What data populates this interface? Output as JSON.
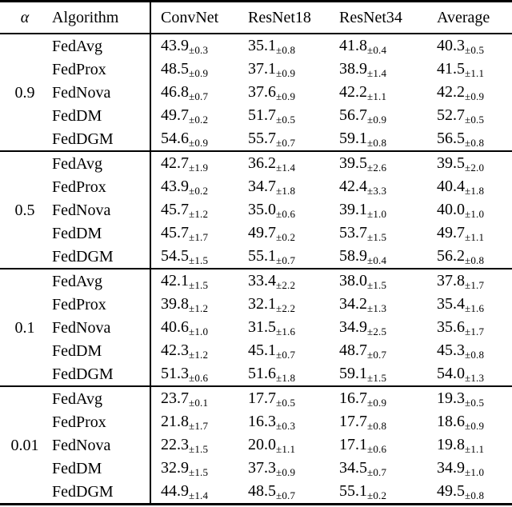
{
  "table": {
    "header": {
      "alpha": "α",
      "algorithm": "Algorithm",
      "columns": [
        "ConvNet",
        "ResNet18",
        "ResNet34",
        "Average"
      ]
    },
    "groups": [
      {
        "alpha": "0.9",
        "rows": [
          {
            "algorithm": "FedAvg",
            "cells": [
              {
                "mean": "43.9",
                "std": "±0.3"
              },
              {
                "mean": "35.1",
                "std": "±0.8"
              },
              {
                "mean": "41.8",
                "std": "±0.4"
              },
              {
                "mean": "40.3",
                "std": "±0.5"
              }
            ]
          },
          {
            "algorithm": "FedProx",
            "cells": [
              {
                "mean": "48.5",
                "std": "±0.9"
              },
              {
                "mean": "37.1",
                "std": "±0.9"
              },
              {
                "mean": "38.9",
                "std": "±1.4"
              },
              {
                "mean": "41.5",
                "std": "±1.1"
              }
            ]
          },
          {
            "algorithm": "FedNova",
            "cells": [
              {
                "mean": "46.8",
                "std": "±0.7"
              },
              {
                "mean": "37.6",
                "std": "±0.9"
              },
              {
                "mean": "42.2",
                "std": "±1.1"
              },
              {
                "mean": "42.2",
                "std": "±0.9"
              }
            ]
          },
          {
            "algorithm": "FedDM",
            "cells": [
              {
                "mean": "49.7",
                "std": "±0.2"
              },
              {
                "mean": "51.7",
                "std": "±0.5"
              },
              {
                "mean": "56.7",
                "std": "±0.9"
              },
              {
                "mean": "52.7",
                "std": "±0.5"
              }
            ]
          },
          {
            "algorithm": "FedDGM",
            "cells": [
              {
                "mean": "54.6",
                "std": "±0.9"
              },
              {
                "mean": "55.7",
                "std": "±0.7"
              },
              {
                "mean": "59.1",
                "std": "±0.8"
              },
              {
                "mean": "56.5",
                "std": "±0.8"
              }
            ]
          }
        ]
      },
      {
        "alpha": "0.5",
        "rows": [
          {
            "algorithm": "FedAvg",
            "cells": [
              {
                "mean": "42.7",
                "std": "±1.9"
              },
              {
                "mean": "36.2",
                "std": "±1.4"
              },
              {
                "mean": "39.5",
                "std": "±2.6"
              },
              {
                "mean": "39.5",
                "std": "±2.0"
              }
            ]
          },
          {
            "algorithm": "FedProx",
            "cells": [
              {
                "mean": "43.9",
                "std": "±0.2"
              },
              {
                "mean": "34.7",
                "std": "±1.8"
              },
              {
                "mean": "42.4",
                "std": "±3.3"
              },
              {
                "mean": "40.4",
                "std": "±1.8"
              }
            ]
          },
          {
            "algorithm": "FedNova",
            "cells": [
              {
                "mean": "45.7",
                "std": "±1.2"
              },
              {
                "mean": "35.0",
                "std": "±0.6"
              },
              {
                "mean": "39.1",
                "std": "±1.0"
              },
              {
                "mean": "40.0",
                "std": "±1.0"
              }
            ]
          },
          {
            "algorithm": "FedDM",
            "cells": [
              {
                "mean": "45.7",
                "std": "±1.7"
              },
              {
                "mean": "49.7",
                "std": "±0.2"
              },
              {
                "mean": "53.7",
                "std": "±1.5"
              },
              {
                "mean": "49.7",
                "std": "±1.1"
              }
            ]
          },
          {
            "algorithm": "FedDGM",
            "cells": [
              {
                "mean": "54.5",
                "std": "±1.5"
              },
              {
                "mean": "55.1",
                "std": "±0.7"
              },
              {
                "mean": "58.9",
                "std": "±0.4"
              },
              {
                "mean": "56.2",
                "std": "±0.8"
              }
            ]
          }
        ]
      },
      {
        "alpha": "0.1",
        "rows": [
          {
            "algorithm": "FedAvg",
            "cells": [
              {
                "mean": "42.1",
                "std": "±1.5"
              },
              {
                "mean": "33.4",
                "std": "±2.2"
              },
              {
                "mean": "38.0",
                "std": "±1.5"
              },
              {
                "mean": "37.8",
                "std": "±1.7"
              }
            ]
          },
          {
            "algorithm": "FedProx",
            "cells": [
              {
                "mean": "39.8",
                "std": "±1.2"
              },
              {
                "mean": "32.1",
                "std": "±2.2"
              },
              {
                "mean": "34.2",
                "std": "±1.3"
              },
              {
                "mean": "35.4",
                "std": "±1.6"
              }
            ]
          },
          {
            "algorithm": "FedNova",
            "cells": [
              {
                "mean": "40.6",
                "std": "±1.0"
              },
              {
                "mean": "31.5",
                "std": "±1.6"
              },
              {
                "mean": "34.9",
                "std": "±2.5"
              },
              {
                "mean": "35.6",
                "std": "±1.7"
              }
            ]
          },
          {
            "algorithm": "FedDM",
            "cells": [
              {
                "mean": "42.3",
                "std": "±1.2"
              },
              {
                "mean": "45.1",
                "std": "±0.7"
              },
              {
                "mean": "48.7",
                "std": "±0.7"
              },
              {
                "mean": "45.3",
                "std": "±0.8"
              }
            ]
          },
          {
            "algorithm": "FedDGM",
            "cells": [
              {
                "mean": "51.3",
                "std": "±0.6"
              },
              {
                "mean": "51.6",
                "std": "±1.8"
              },
              {
                "mean": "59.1",
                "std": "±1.5"
              },
              {
                "mean": "54.0",
                "std": "±1.3"
              }
            ]
          }
        ]
      },
      {
        "alpha": "0.01",
        "rows": [
          {
            "algorithm": "FedAvg",
            "cells": [
              {
                "mean": "23.7",
                "std": "±0.1"
              },
              {
                "mean": "17.7",
                "std": "±0.5"
              },
              {
                "mean": "16.7",
                "std": "±0.9"
              },
              {
                "mean": "19.3",
                "std": "±0.5"
              }
            ]
          },
          {
            "algorithm": "FedProx",
            "cells": [
              {
                "mean": "21.8",
                "std": "±1.7"
              },
              {
                "mean": "16.3",
                "std": "±0.3"
              },
              {
                "mean": "17.7",
                "std": "±0.8"
              },
              {
                "mean": "18.6",
                "std": "±0.9"
              }
            ]
          },
          {
            "algorithm": "FedNova",
            "cells": [
              {
                "mean": "22.3",
                "std": "±1.5"
              },
              {
                "mean": "20.0",
                "std": "±1.1"
              },
              {
                "mean": "17.1",
                "std": "±0.6"
              },
              {
                "mean": "19.8",
                "std": "±1.1"
              }
            ]
          },
          {
            "algorithm": "FedDM",
            "cells": [
              {
                "mean": "32.9",
                "std": "±1.5"
              },
              {
                "mean": "37.3",
                "std": "±0.9"
              },
              {
                "mean": "34.5",
                "std": "±0.7"
              },
              {
                "mean": "34.9",
                "std": "±1.0"
              }
            ]
          },
          {
            "algorithm": "FedDGM",
            "cells": [
              {
                "mean": "44.9",
                "std": "±1.4"
              },
              {
                "mean": "48.5",
                "std": "±0.7"
              },
              {
                "mean": "55.1",
                "std": "±0.2"
              },
              {
                "mean": "49.5",
                "std": "±0.8"
              }
            ]
          }
        ]
      }
    ]
  }
}
